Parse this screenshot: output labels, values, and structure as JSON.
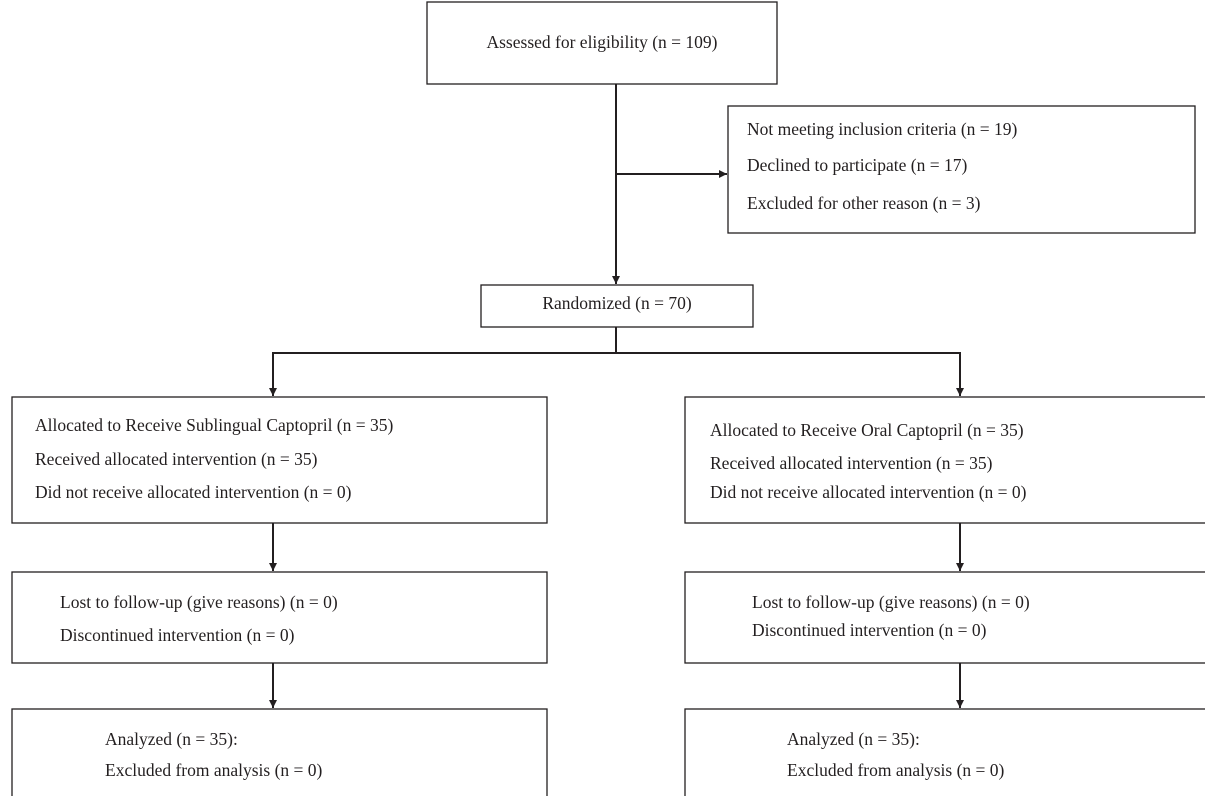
{
  "nodes": [
    {
      "lines": [
        "Assessed for eligibility (n = 109)"
      ]
    },
    {
      "lines": [
        "Not meeting inclusion criteria (n = 19)",
        "Declined to participate (n = 17)",
        "Excluded for other reason (n = 3)"
      ]
    },
    {
      "lines": [
        "Randomized (n = 70)"
      ]
    },
    {
      "lines": [
        "Allocated to Receive Sublingual Captopril (n = 35)",
        "Received allocated intervention (n = 35)",
        "Did not receive allocated intervention (n = 0)"
      ]
    },
    {
      "lines": [
        "Allocated to Receive Oral Captopril (n = 35)",
        "Received allocated intervention (n = 35)",
        "Did not receive allocated intervention (n = 0)"
      ]
    },
    {
      "lines": [
        "Lost to follow-up (give reasons) (n = 0)",
        "Discontinued intervention (n = 0)"
      ]
    },
    {
      "lines": [
        "Lost to follow-up (give reasons) (n = 0)",
        "Discontinued intervention (n = 0)"
      ]
    },
    {
      "lines": [
        "Analyzed (n = 35):",
        "Excluded from analysis (n = 0)"
      ]
    },
    {
      "lines": [
        "Analyzed (n = 35):",
        "Excluded from analysis (n = 0)"
      ]
    }
  ]
}
